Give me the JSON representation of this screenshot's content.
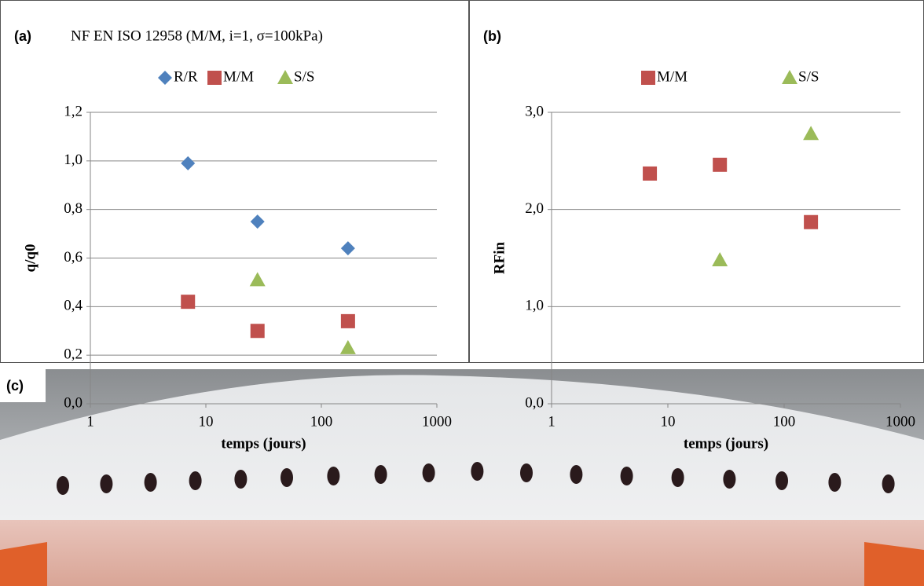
{
  "chart_data": [
    {
      "type": "scatter",
      "panel": "(a)",
      "title": "NF EN ISO 12958 (M/M, i=1, σ=100kPa)",
      "x_label": "temps (jours)",
      "y_label": "q/q0",
      "log_x": true,
      "grid": true,
      "xlim": [
        1,
        1000
      ],
      "xticks": [
        1,
        10,
        100,
        1000
      ],
      "ylim": [
        0,
        1.2
      ],
      "yticks": [
        {
          "value": 0,
          "label": "0,0"
        },
        {
          "value": 0.2,
          "label": "0,2"
        },
        {
          "value": 0.4,
          "label": "0,4"
        },
        {
          "value": 0.6,
          "label": "0,6"
        },
        {
          "value": 0.8,
          "label": "0,8"
        },
        {
          "value": 1.0,
          "label": "1,0"
        },
        {
          "value": 1.2,
          "label": "1,2"
        }
      ],
      "series": [
        {
          "name": "R/R",
          "color": "#4f81bd",
          "marker": "diamond",
          "x": [
            7,
            28,
            170
          ],
          "values": [
            0.99,
            0.75,
            0.64
          ]
        },
        {
          "name": "M/M",
          "color": "#c0504d",
          "marker": "square",
          "x": [
            7,
            28,
            170
          ],
          "values": [
            0.42,
            0.3,
            0.34
          ]
        },
        {
          "name": "S/S",
          "color": "#9bbb59",
          "marker": "triangle",
          "x": [
            28,
            170
          ],
          "values": [
            0.51,
            0.23
          ]
        }
      ]
    },
    {
      "type": "scatter",
      "panel": "(b)",
      "x_label": "temps (jours)",
      "y_label": "RFin",
      "log_x": true,
      "grid": true,
      "xlim": [
        1,
        1000
      ],
      "xticks": [
        1,
        10,
        100,
        1000
      ],
      "ylim": [
        0,
        3
      ],
      "yticks": [
        {
          "value": 0,
          "label": "0,0"
        },
        {
          "value": 1,
          "label": "1,0"
        },
        {
          "value": 2,
          "label": "2,0"
        },
        {
          "value": 3,
          "label": "3,0"
        }
      ],
      "series": [
        {
          "name": "M/M",
          "color": "#c0504d",
          "marker": "square",
          "x": [
            7,
            28,
            170
          ],
          "values": [
            2.37,
            2.46,
            1.87
          ]
        },
        {
          "name": "S/S",
          "color": "#9bbb59",
          "marker": "triangle",
          "x": [
            28,
            170
          ],
          "values": [
            1.48,
            2.78
          ]
        }
      ]
    }
  ],
  "photo_label": "(c)"
}
